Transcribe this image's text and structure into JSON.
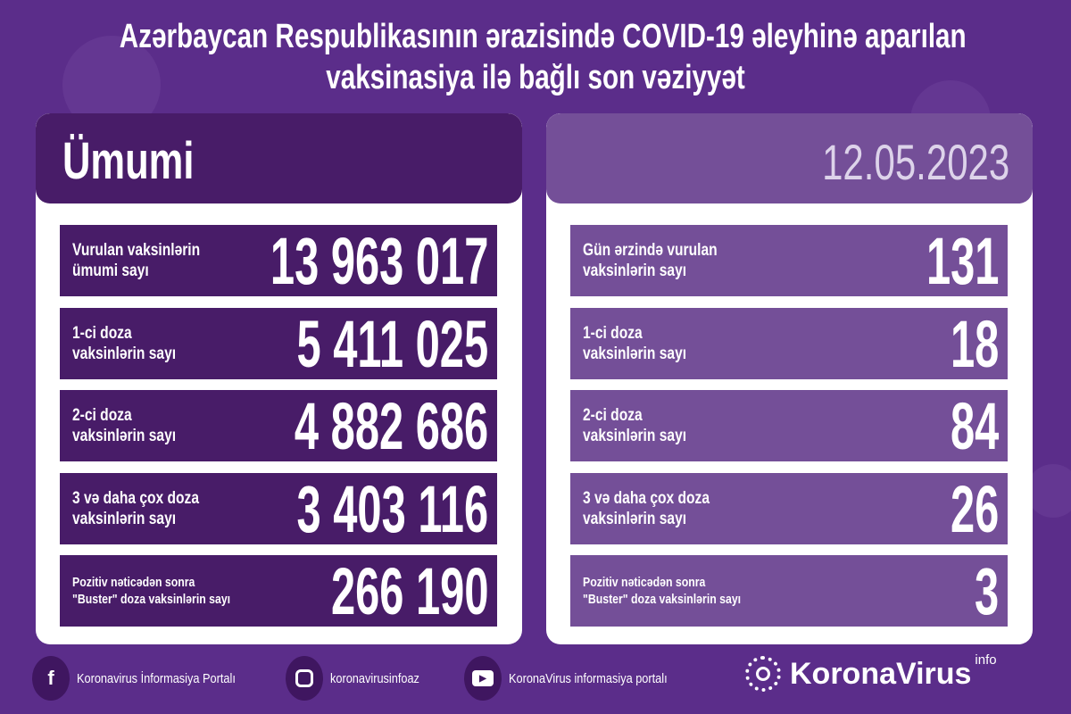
{
  "title": {
    "line1": "Azərbaycan Respublikasının ərazisində COVID-19 əleyhinə aparılan",
    "line2": "vaksinasiya ilə bağlı son vəziyyət"
  },
  "left": {
    "header": "Ümumi",
    "rows": [
      {
        "label": "Vurulan vaksinlərin\nümumi sayı",
        "value": "13 963 017"
      },
      {
        "label": "1-ci doza\nvaksinlərin sayı",
        "value": "5 411 025"
      },
      {
        "label": "2-ci doza\nvaksinlərin sayı",
        "value": "4 882 686"
      },
      {
        "label": "3 və daha çox doza\nvaksinlərin sayı",
        "value": "3 403 116"
      },
      {
        "label": "Pozitiv nəticədən sonra\n\"Buster\" doza vaksinlərin sayı",
        "value": "266 190"
      }
    ]
  },
  "right": {
    "header": "12.05.2023",
    "rows": [
      {
        "label": "Gün ərzində vurulan\nvaksinlərin sayı",
        "value": "131"
      },
      {
        "label": "1-ci doza\nvaksinlərin sayı",
        "value": "18"
      },
      {
        "label": "2-ci doza\nvaksinlərin sayı",
        "value": "84"
      },
      {
        "label": "3 və daha çox doza\nvaksinlərin sayı",
        "value": "26"
      },
      {
        "label": "Pozitiv nəticədən sonra\n\"Buster\" doza vaksinlərin sayı",
        "value": "3"
      }
    ]
  },
  "footer": {
    "facebook": {
      "icon": "facebook-icon",
      "label": "Koronavirus İnformasiya Portalı"
    },
    "instagram": {
      "icon": "instagram-icon",
      "label": "koronavirusinfoaz"
    },
    "youtube": {
      "icon": "youtube-icon",
      "label": "KoronaVirus informasiya portalı"
    },
    "logo": {
      "name": "KoronaVirus",
      "sup": "info"
    }
  },
  "colors": {
    "background": "#5b2d8a",
    "left_rows": "#481c68",
    "right_rows": "#744f98"
  }
}
